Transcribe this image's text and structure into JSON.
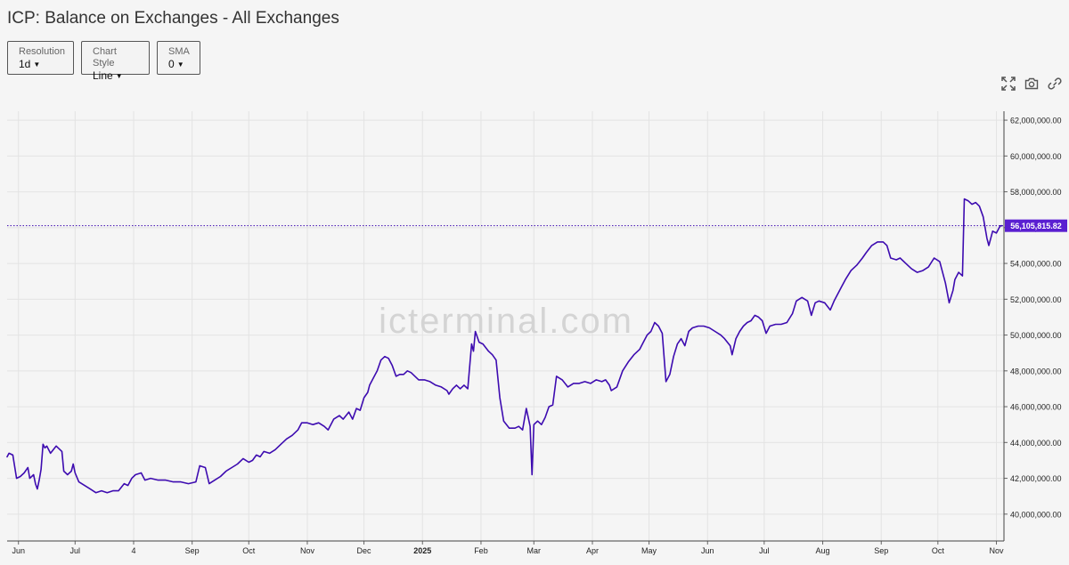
{
  "header": {
    "title": "ICP: Balance on Exchanges - All Exchanges"
  },
  "controls": [
    {
      "label": "Resolution",
      "value": "1d"
    },
    {
      "label": "Chart Style",
      "value": "Line"
    },
    {
      "label": "SMA",
      "value": "0"
    }
  ],
  "toolbar": {
    "icons": [
      "fullscreen-icon",
      "camera-icon",
      "link-icon"
    ]
  },
  "watermark": "icterminal.com",
  "colors": {
    "line": "#3d0bb0",
    "badge": "#5a1fd1",
    "grid": "#e3e3e3",
    "background": "#f5f5f5"
  },
  "chart_data": {
    "type": "line",
    "title": "ICP: Balance on Exchanges - All Exchanges",
    "xlabel": "",
    "ylabel": "",
    "grid": true,
    "ylim": [
      38500000,
      62500000
    ],
    "xlim": [
      "2024-05-26",
      "2025-11-05"
    ],
    "y_ticks": [
      40000000,
      42000000,
      44000000,
      46000000,
      48000000,
      50000000,
      52000000,
      54000000,
      56000000,
      58000000,
      60000000,
      62000000
    ],
    "y_tick_labels": [
      "40,000,000.00",
      "42,000,000.00",
      "44,000,000.00",
      "46,000,000.00",
      "48,000,000.00",
      "50,000,000.00",
      "52,000,000.00",
      "54,000,000.00",
      "56,000,000.00",
      "58,000,000.00",
      "60,000,000.00",
      "62,000,000.00"
    ],
    "x_ticks": [
      {
        "date": "2024-06-01",
        "label": "Jun",
        "bold": false
      },
      {
        "date": "2024-07-01",
        "label": "Jul",
        "bold": false
      },
      {
        "date": "2024-08-01",
        "label": "4",
        "bold": false
      },
      {
        "date": "2024-09-01",
        "label": "Sep",
        "bold": false
      },
      {
        "date": "2024-10-01",
        "label": "Oct",
        "bold": false
      },
      {
        "date": "2024-11-01",
        "label": "Nov",
        "bold": false
      },
      {
        "date": "2024-12-01",
        "label": "Dec",
        "bold": false
      },
      {
        "date": "2025-01-01",
        "label": "2025",
        "bold": true
      },
      {
        "date": "2025-02-01",
        "label": "Feb",
        "bold": false
      },
      {
        "date": "2025-03-01",
        "label": "Mar",
        "bold": false
      },
      {
        "date": "2025-04-01",
        "label": "Apr",
        "bold": false
      },
      {
        "date": "2025-05-01",
        "label": "May",
        "bold": false
      },
      {
        "date": "2025-06-01",
        "label": "Jun",
        "bold": false
      },
      {
        "date": "2025-07-01",
        "label": "Jul",
        "bold": false
      },
      {
        "date": "2025-08-01",
        "label": "Aug",
        "bold": false
      },
      {
        "date": "2025-09-01",
        "label": "Sep",
        "bold": false
      },
      {
        "date": "2025-10-01",
        "label": "Oct",
        "bold": false
      },
      {
        "date": "2025-11-01",
        "label": "Nov",
        "bold": false
      }
    ],
    "last_value": 56105815.82,
    "last_value_label": "56,105,815.82",
    "series": [
      {
        "points": [
          [
            "2024-05-26",
            43200000
          ],
          [
            "2024-05-27",
            43400000
          ],
          [
            "2024-05-29",
            43300000
          ],
          [
            "2024-05-31",
            42000000
          ],
          [
            "2024-06-02",
            42100000
          ],
          [
            "2024-06-04",
            42300000
          ],
          [
            "2024-06-06",
            42600000
          ],
          [
            "2024-06-07",
            42000000
          ],
          [
            "2024-06-09",
            42200000
          ],
          [
            "2024-06-10",
            41700000
          ],
          [
            "2024-06-11",
            41400000
          ],
          [
            "2024-06-12",
            41900000
          ],
          [
            "2024-06-13",
            42500000
          ],
          [
            "2024-06-14",
            43900000
          ],
          [
            "2024-06-15",
            43700000
          ],
          [
            "2024-06-16",
            43800000
          ],
          [
            "2024-06-18",
            43400000
          ],
          [
            "2024-06-21",
            43800000
          ],
          [
            "2024-06-24",
            43500000
          ],
          [
            "2024-06-25",
            42400000
          ],
          [
            "2024-06-27",
            42200000
          ],
          [
            "2024-06-29",
            42400000
          ],
          [
            "2024-06-30",
            42800000
          ],
          [
            "2024-07-01",
            42300000
          ],
          [
            "2024-07-03",
            41800000
          ],
          [
            "2024-07-06",
            41600000
          ],
          [
            "2024-07-09",
            41400000
          ],
          [
            "2024-07-12",
            41200000
          ],
          [
            "2024-07-15",
            41300000
          ],
          [
            "2024-07-18",
            41200000
          ],
          [
            "2024-07-21",
            41300000
          ],
          [
            "2024-07-24",
            41300000
          ],
          [
            "2024-07-27",
            41700000
          ],
          [
            "2024-07-29",
            41600000
          ],
          [
            "2024-07-31",
            42000000
          ],
          [
            "2024-08-02",
            42200000
          ],
          [
            "2024-08-05",
            42300000
          ],
          [
            "2024-08-07",
            41900000
          ],
          [
            "2024-08-10",
            42000000
          ],
          [
            "2024-08-14",
            41900000
          ],
          [
            "2024-08-18",
            41900000
          ],
          [
            "2024-08-22",
            41800000
          ],
          [
            "2024-08-26",
            41800000
          ],
          [
            "2024-08-30",
            41700000
          ],
          [
            "2024-09-03",
            41800000
          ],
          [
            "2024-09-05",
            42700000
          ],
          [
            "2024-09-08",
            42600000
          ],
          [
            "2024-09-10",
            41700000
          ],
          [
            "2024-09-13",
            41900000
          ],
          [
            "2024-09-16",
            42100000
          ],
          [
            "2024-09-19",
            42400000
          ],
          [
            "2024-09-22",
            42600000
          ],
          [
            "2024-09-25",
            42800000
          ],
          [
            "2024-09-28",
            43100000
          ],
          [
            "2024-10-01",
            42900000
          ],
          [
            "2024-10-03",
            43000000
          ],
          [
            "2024-10-05",
            43300000
          ],
          [
            "2024-10-07",
            43200000
          ],
          [
            "2024-10-09",
            43500000
          ],
          [
            "2024-10-12",
            43400000
          ],
          [
            "2024-10-15",
            43600000
          ],
          [
            "2024-10-18",
            43900000
          ],
          [
            "2024-10-21",
            44200000
          ],
          [
            "2024-10-24",
            44400000
          ],
          [
            "2024-10-27",
            44700000
          ],
          [
            "2024-10-29",
            45100000
          ],
          [
            "2024-11-01",
            45100000
          ],
          [
            "2024-11-04",
            45000000
          ],
          [
            "2024-11-07",
            45100000
          ],
          [
            "2024-11-10",
            44900000
          ],
          [
            "2024-11-12",
            44700000
          ],
          [
            "2024-11-15",
            45300000
          ],
          [
            "2024-11-18",
            45500000
          ],
          [
            "2024-11-20",
            45300000
          ],
          [
            "2024-11-23",
            45700000
          ],
          [
            "2024-11-25",
            45300000
          ],
          [
            "2024-11-27",
            45900000
          ],
          [
            "2024-11-29",
            45800000
          ],
          [
            "2024-12-01",
            46500000
          ],
          [
            "2024-12-03",
            46800000
          ],
          [
            "2024-12-04",
            47200000
          ],
          [
            "2024-12-06",
            47600000
          ],
          [
            "2024-12-08",
            48000000
          ],
          [
            "2024-12-10",
            48600000
          ],
          [
            "2024-12-12",
            48800000
          ],
          [
            "2024-12-14",
            48700000
          ],
          [
            "2024-12-16",
            48300000
          ],
          [
            "2024-12-18",
            47700000
          ],
          [
            "2024-12-20",
            47800000
          ],
          [
            "2024-12-22",
            47800000
          ],
          [
            "2024-12-24",
            48000000
          ],
          [
            "2024-12-26",
            47900000
          ],
          [
            "2024-12-28",
            47700000
          ],
          [
            "2024-12-30",
            47500000
          ],
          [
            "2025-01-02",
            47500000
          ],
          [
            "2025-01-05",
            47400000
          ],
          [
            "2025-01-08",
            47200000
          ],
          [
            "2025-01-11",
            47100000
          ],
          [
            "2025-01-14",
            46900000
          ],
          [
            "2025-01-15",
            46700000
          ],
          [
            "2025-01-17",
            47000000
          ],
          [
            "2025-01-19",
            47200000
          ],
          [
            "2025-01-21",
            47000000
          ],
          [
            "2025-01-23",
            47200000
          ],
          [
            "2025-01-25",
            47000000
          ],
          [
            "2025-01-27",
            49500000
          ],
          [
            "2025-01-28",
            49100000
          ],
          [
            "2025-01-29",
            50200000
          ],
          [
            "2025-01-31",
            49600000
          ],
          [
            "2025-02-02",
            49500000
          ],
          [
            "2025-02-05",
            49100000
          ],
          [
            "2025-02-07",
            48900000
          ],
          [
            "2025-02-09",
            48600000
          ],
          [
            "2025-02-11",
            46500000
          ],
          [
            "2025-02-13",
            45200000
          ],
          [
            "2025-02-16",
            44800000
          ],
          [
            "2025-02-19",
            44800000
          ],
          [
            "2025-02-21",
            44900000
          ],
          [
            "2025-02-23",
            44700000
          ],
          [
            "2025-02-25",
            45900000
          ],
          [
            "2025-02-27",
            44900000
          ],
          [
            "2025-02-28",
            42200000
          ],
          [
            "2025-03-01",
            45000000
          ],
          [
            "2025-03-03",
            45200000
          ],
          [
            "2025-03-05",
            45000000
          ],
          [
            "2025-03-07",
            45400000
          ],
          [
            "2025-03-09",
            46000000
          ],
          [
            "2025-03-11",
            46100000
          ],
          [
            "2025-03-13",
            47700000
          ],
          [
            "2025-03-16",
            47500000
          ],
          [
            "2025-03-19",
            47100000
          ],
          [
            "2025-03-22",
            47300000
          ],
          [
            "2025-03-25",
            47300000
          ],
          [
            "2025-03-28",
            47400000
          ],
          [
            "2025-03-31",
            47300000
          ],
          [
            "2025-04-03",
            47500000
          ],
          [
            "2025-04-06",
            47400000
          ],
          [
            "2025-04-08",
            47500000
          ],
          [
            "2025-04-10",
            47200000
          ],
          [
            "2025-04-11",
            46900000
          ],
          [
            "2025-04-14",
            47100000
          ],
          [
            "2025-04-17",
            48000000
          ],
          [
            "2025-04-20",
            48500000
          ],
          [
            "2025-04-23",
            48900000
          ],
          [
            "2025-04-26",
            49200000
          ],
          [
            "2025-04-28",
            49600000
          ],
          [
            "2025-04-30",
            50000000
          ],
          [
            "2025-05-02",
            50200000
          ],
          [
            "2025-05-04",
            50700000
          ],
          [
            "2025-05-06",
            50500000
          ],
          [
            "2025-05-08",
            50100000
          ],
          [
            "2025-05-10",
            47400000
          ],
          [
            "2025-05-12",
            47800000
          ],
          [
            "2025-05-14",
            48800000
          ],
          [
            "2025-05-16",
            49500000
          ],
          [
            "2025-05-18",
            49800000
          ],
          [
            "2025-05-20",
            49400000
          ],
          [
            "2025-05-22",
            50200000
          ],
          [
            "2025-05-24",
            50400000
          ],
          [
            "2025-05-27",
            50500000
          ],
          [
            "2025-05-30",
            50500000
          ],
          [
            "2025-06-02",
            50400000
          ],
          [
            "2025-06-05",
            50200000
          ],
          [
            "2025-06-08",
            50000000
          ],
          [
            "2025-06-10",
            49800000
          ],
          [
            "2025-06-13",
            49400000
          ],
          [
            "2025-06-14",
            48900000
          ],
          [
            "2025-06-16",
            49800000
          ],
          [
            "2025-06-18",
            50200000
          ],
          [
            "2025-06-20",
            50500000
          ],
          [
            "2025-06-22",
            50700000
          ],
          [
            "2025-06-24",
            50800000
          ],
          [
            "2025-06-26",
            51100000
          ],
          [
            "2025-06-28",
            51000000
          ],
          [
            "2025-06-30",
            50800000
          ],
          [
            "2025-07-02",
            50100000
          ],
          [
            "2025-07-04",
            50500000
          ],
          [
            "2025-07-07",
            50600000
          ],
          [
            "2025-07-10",
            50600000
          ],
          [
            "2025-07-13",
            50700000
          ],
          [
            "2025-07-16",
            51200000
          ],
          [
            "2025-07-18",
            51900000
          ],
          [
            "2025-07-21",
            52100000
          ],
          [
            "2025-07-24",
            51900000
          ],
          [
            "2025-07-26",
            51100000
          ],
          [
            "2025-07-28",
            51800000
          ],
          [
            "2025-07-30",
            51900000
          ],
          [
            "2025-08-02",
            51800000
          ],
          [
            "2025-08-05",
            51400000
          ],
          [
            "2025-08-07",
            51900000
          ],
          [
            "2025-08-09",
            52300000
          ],
          [
            "2025-08-11",
            52700000
          ],
          [
            "2025-08-13",
            53100000
          ],
          [
            "2025-08-16",
            53600000
          ],
          [
            "2025-08-19",
            53900000
          ],
          [
            "2025-08-22",
            54300000
          ],
          [
            "2025-08-24",
            54600000
          ],
          [
            "2025-08-27",
            55000000
          ],
          [
            "2025-08-30",
            55200000
          ],
          [
            "2025-09-02",
            55200000
          ],
          [
            "2025-09-04",
            55000000
          ],
          [
            "2025-09-06",
            54300000
          ],
          [
            "2025-09-09",
            54200000
          ],
          [
            "2025-09-11",
            54300000
          ],
          [
            "2025-09-14",
            54000000
          ],
          [
            "2025-09-17",
            53700000
          ],
          [
            "2025-09-20",
            53500000
          ],
          [
            "2025-09-23",
            53600000
          ],
          [
            "2025-09-26",
            53800000
          ],
          [
            "2025-09-29",
            54300000
          ],
          [
            "2025-10-02",
            54100000
          ],
          [
            "2025-10-05",
            52900000
          ],
          [
            "2025-10-07",
            51800000
          ],
          [
            "2025-10-09",
            52500000
          ],
          [
            "2025-10-10",
            53100000
          ],
          [
            "2025-10-12",
            53500000
          ],
          [
            "2025-10-14",
            53300000
          ],
          [
            "2025-10-15",
            57600000
          ],
          [
            "2025-10-17",
            57500000
          ],
          [
            "2025-10-19",
            57300000
          ],
          [
            "2025-10-21",
            57400000
          ],
          [
            "2025-10-23",
            57200000
          ],
          [
            "2025-10-25",
            56600000
          ],
          [
            "2025-10-27",
            55400000
          ],
          [
            "2025-10-28",
            55000000
          ],
          [
            "2025-10-30",
            55800000
          ],
          [
            "2025-11-01",
            55700000
          ],
          [
            "2025-11-03",
            56100000
          ],
          [
            "2025-11-04",
            56105815.82
          ]
        ]
      }
    ]
  }
}
